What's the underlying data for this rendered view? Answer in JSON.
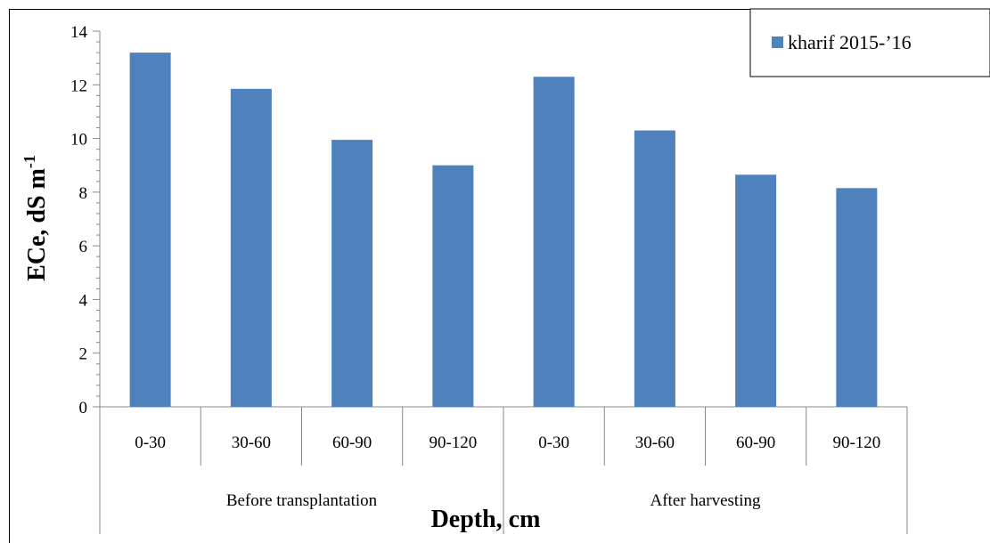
{
  "chart_data": {
    "type": "bar",
    "categories": [
      "0-30",
      "30-60",
      "60-90",
      "90-120",
      "0-30",
      "30-60",
      "60-90",
      "90-120"
    ],
    "groups": [
      {
        "label": "Before transplantation",
        "span": 4
      },
      {
        "label": "After harvesting",
        "span": 4
      }
    ],
    "series": [
      {
        "name": "kharif 2015-’16",
        "color": "#4f81bd",
        "values": [
          13.2,
          11.85,
          9.95,
          9.0,
          12.3,
          10.3,
          8.65,
          8.15
        ]
      }
    ],
    "ylabel": "ECe, dS m",
    "ylabel_superscript": "-1",
    "xlabel": "Depth, cm",
    "ylim": [
      0,
      14
    ],
    "yticks": [
      0,
      2,
      4,
      6,
      8,
      10,
      12,
      14
    ],
    "minor_ticks_per_major": 5,
    "legend": "top-right",
    "grid": false
  }
}
